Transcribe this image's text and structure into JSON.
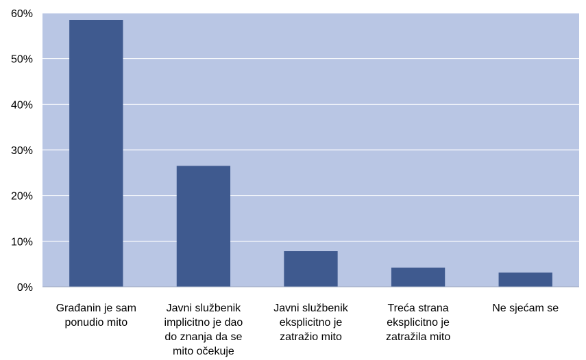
{
  "chart_data": {
    "type": "bar",
    "categories": [
      [
        "Građanin je sam",
        "ponudio mito"
      ],
      [
        "Javni službenik",
        "implicitno je dao",
        "do znanja da se",
        "mito očekuje"
      ],
      [
        "Javni službenik",
        "eksplicitno je",
        "zatražio mito"
      ],
      [
        "Treća strana",
        "eksplicitno je",
        "zatražila mito"
      ],
      [
        "Ne sjećam se"
      ]
    ],
    "values": [
      58.5,
      26.5,
      7.8,
      4.2,
      3.1
    ],
    "ylim": [
      0,
      60
    ],
    "yticks": [
      "0%",
      "10%",
      "20%",
      "30%",
      "40%",
      "50%",
      "60%"
    ],
    "grid": true,
    "legend": "none",
    "colors": {
      "plot_background": "#b9c6e4",
      "bar": "#3f5a8f",
      "gridline": "#ffffff"
    }
  }
}
